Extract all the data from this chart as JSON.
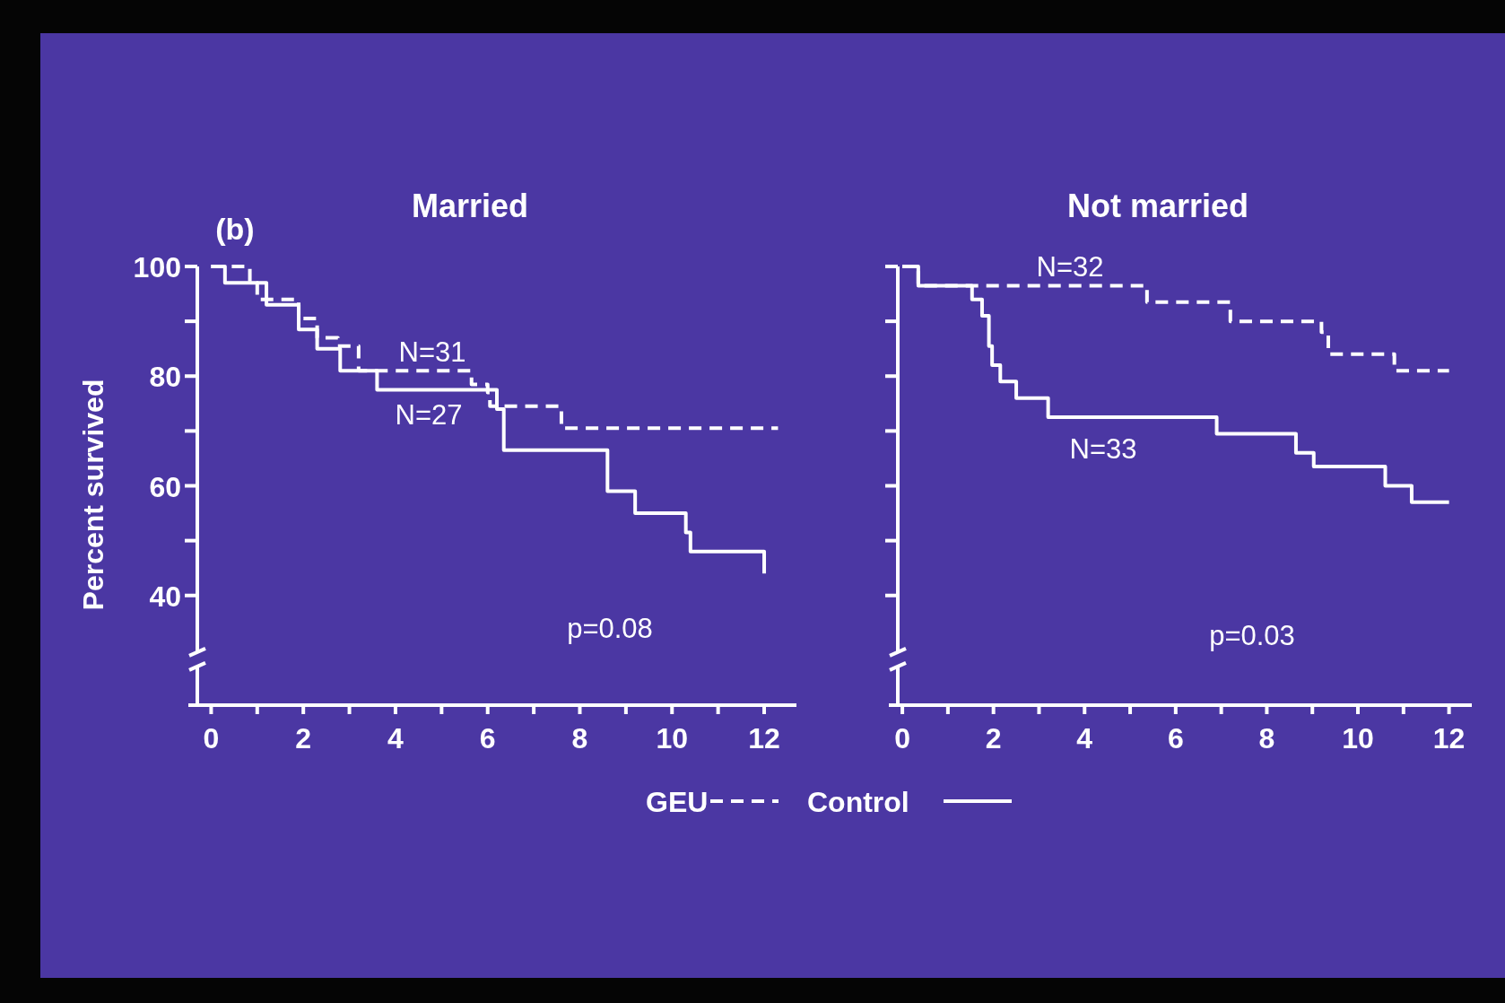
{
  "chart_data": [
    {
      "type": "step",
      "title": "Married",
      "ylabel": "Percent survived",
      "xlim": [
        -0.3,
        12.7
      ],
      "ylim": [
        20,
        100
      ],
      "xticks": [
        0,
        {
          "value": 1,
          "label": null
        },
        2,
        {
          "value": 3,
          "label": null
        },
        4,
        {
          "value": 5,
          "label": null
        },
        6,
        {
          "value": 7,
          "label": null
        },
        8,
        {
          "value": 9,
          "label": null
        },
        10,
        {
          "value": 11,
          "label": null
        },
        12
      ],
      "yticks": [
        40,
        {
          "value": 50,
          "label": null
        },
        60,
        {
          "value": 70,
          "label": null
        },
        80,
        {
          "value": 90,
          "label": null
        },
        100
      ],
      "legend": "bottom",
      "grid": false,
      "annotations": [
        "(b)",
        "N=31",
        "N=27",
        "p=0.08"
      ],
      "series": [
        {
          "name": "GEU",
          "color": "#ffffff",
          "line_style": "dashed",
          "x": [
            0,
            0.84,
            1.0,
            1.9,
            2.3,
            2.75,
            3.2,
            5.65,
            6.0,
            6.05,
            7.6,
            12.3
          ],
          "values": [
            100,
            97,
            94,
            90.5,
            87,
            85.5,
            81,
            78.5,
            77,
            74.5,
            70.5,
            70.5
          ]
        },
        {
          "name": "Control",
          "color": "#ffffff",
          "line_style": "solid",
          "x": [
            0,
            0.3,
            1.2,
            1.9,
            2.3,
            2.8,
            3.6,
            6.2,
            6.35,
            8.6,
            9.2,
            10.3,
            10.4,
            12
          ],
          "values": [
            100,
            97,
            93,
            88.5,
            85,
            81,
            77.5,
            74,
            66.5,
            59,
            55,
            51.5,
            48,
            44
          ]
        }
      ]
    },
    {
      "type": "step",
      "title": "Not married",
      "xlim": [
        -0.1,
        12.5
      ],
      "ylim": [
        20,
        100
      ],
      "tick_labels": "x",
      "xticks": [
        0,
        {
          "value": 1,
          "label": null
        },
        2,
        {
          "value": 3,
          "label": null
        },
        4,
        {
          "value": 5,
          "label": null
        },
        6,
        {
          "value": 7,
          "label": null
        },
        8,
        {
          "value": 9,
          "label": null
        },
        10,
        {
          "value": 11,
          "label": null
        },
        12
      ],
      "yticks": [
        {
          "value": 40,
          "label": null
        },
        {
          "value": 50,
          "label": null
        },
        {
          "value": 60,
          "label": null
        },
        {
          "value": 70,
          "label": null
        },
        {
          "value": 80,
          "label": null
        },
        {
          "value": 90,
          "label": null
        },
        {
          "value": 100,
          "label": null
        }
      ],
      "grid": false,
      "annotations": [
        "N=32",
        "N=33",
        "p=0.03"
      ],
      "series": [
        {
          "color": "#ffffff",
          "line_style": "dashed",
          "x": [
            0,
            0.35,
            5.37,
            7.2,
            9.2,
            9.35,
            10.8,
            12
          ],
          "values": [
            100,
            96.5,
            93.5,
            90,
            88,
            84,
            81,
            81
          ]
        },
        {
          "color": "#ffffff",
          "line_style": "solid",
          "x": [
            0,
            0.35,
            1.53,
            1.75,
            1.9,
            1.97,
            2.15,
            2.5,
            3.2,
            6.9,
            8.64,
            9.03,
            10.6,
            11.18,
            12
          ],
          "values": [
            100,
            96.5,
            94,
            91,
            85.5,
            82,
            79,
            76,
            72.5,
            69.5,
            66,
            63.5,
            60,
            57,
            57
          ]
        }
      ]
    }
  ]
}
